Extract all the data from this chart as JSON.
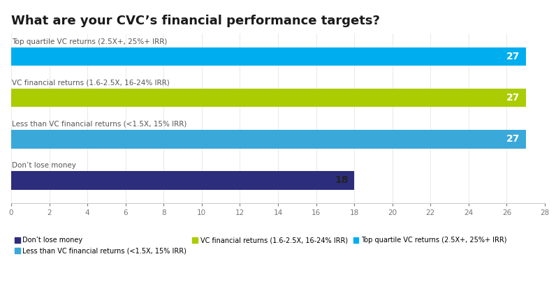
{
  "title": "What are your CVC’s financial performance targets?",
  "categories": [
    "Top quartile VC returns (2.5X+, 25%+ IRR)",
    "VC financial returns (1.6-2.5X, 16-24% IRR)",
    "Less than VC financial returns (<1.5X, 15% IRR)",
    "Don’t lose money"
  ],
  "values": [
    27,
    27,
    27,
    18
  ],
  "bar_colors": [
    "#00AEEF",
    "#AACC00",
    "#3AA8D8",
    "#2D2D7E"
  ],
  "xlim": [
    0,
    28
  ],
  "xticks": [
    0,
    2,
    4,
    6,
    8,
    10,
    12,
    14,
    16,
    18,
    20,
    22,
    24,
    26,
    28
  ],
  "value_label_color_light": "#FFFFFF",
  "value_label_color_dark": "#222222",
  "background_color": "#FFFFFF",
  "title_fontsize": 13,
  "category_fontsize": 7.5,
  "value_fontsize": 10,
  "bar_height": 0.45,
  "legend_entries": [
    {
      "label": "Don’t lose money",
      "color": "#2D2D7E"
    },
    {
      "label": "Less than VC financial returns (<1.5X, 15% IRR)",
      "color": "#3AA8D8"
    },
    {
      "label": "VC financial returns (1.6-2.5X, 16-24% IRR)",
      "color": "#AACC00"
    },
    {
      "label": "Top quartile VC returns (2.5X+, 25%+ IRR)",
      "color": "#00AEEF"
    }
  ]
}
